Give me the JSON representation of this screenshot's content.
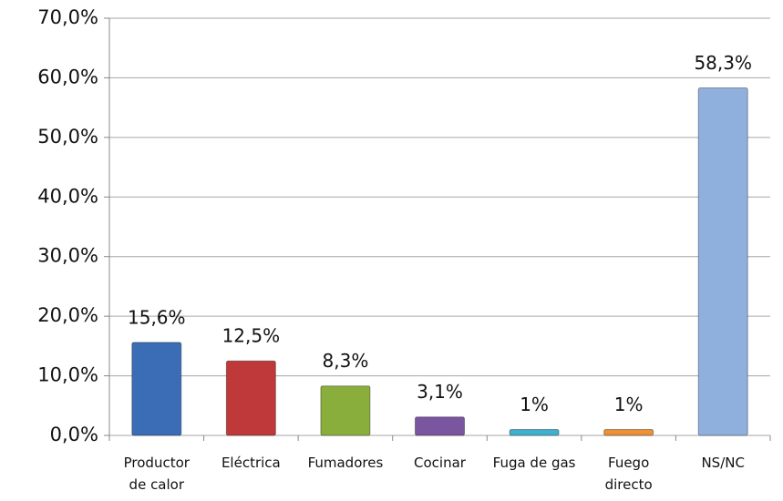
{
  "chart_data": {
    "type": "bar",
    "categories": [
      "Productor de calor",
      "Eléctrica",
      "Fumadores",
      "Cocinar",
      "Fuga de gas",
      "Fuego directo",
      "NS/NC"
    ],
    "values": [
      15.6,
      12.5,
      8.3,
      3.1,
      1,
      1,
      58.3
    ],
    "value_labels": [
      "15,6%",
      "12,5%",
      "8,3%",
      "3,1%",
      "1%",
      "1%",
      "58,3%"
    ],
    "colors": [
      "#3a6db5",
      "#c0393a",
      "#8aae3c",
      "#7a55a0",
      "#3fb1cf",
      "#ee9036",
      "#8fb0dd"
    ],
    "ylim": [
      0,
      70
    ],
    "yticks": [
      {
        "value": 0,
        "label": "0,0%"
      },
      {
        "value": 10,
        "label": "10,0%"
      },
      {
        "value": 20,
        "label": "20,0%"
      },
      {
        "value": 30,
        "label": "30,0%"
      },
      {
        "value": 40,
        "label": "40,0%"
      },
      {
        "value": 50,
        "label": "50,0%"
      },
      {
        "value": 60,
        "label": "60,0%"
      },
      {
        "value": 70,
        "label": "70,0%"
      }
    ],
    "grid": true
  }
}
